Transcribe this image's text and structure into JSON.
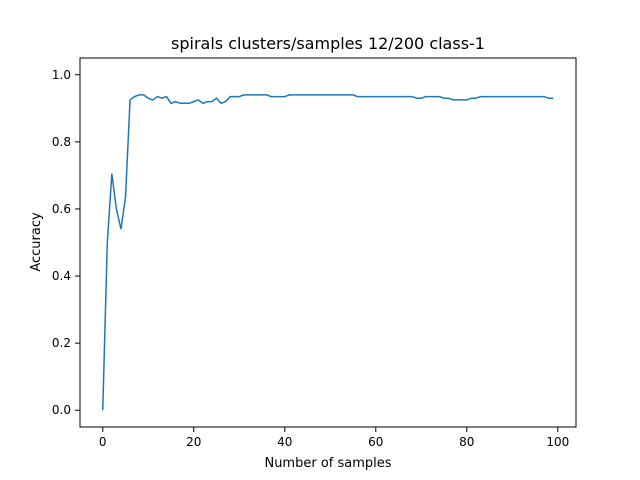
{
  "chart_data": {
    "type": "line",
    "title": "spirals clusters/samples 12/200 class-1",
    "xlabel": "Number of samples",
    "ylabel": "Accuracy",
    "xlim": [
      -5,
      104
    ],
    "ylim": [
      -0.05,
      1.05
    ],
    "xticks": [
      0,
      20,
      40,
      60,
      80,
      100
    ],
    "yticks": [
      0.0,
      0.2,
      0.4,
      0.6,
      0.8,
      1.0
    ],
    "xtick_labels": [
      "0",
      "20",
      "40",
      "60",
      "80",
      "100"
    ],
    "ytick_labels": [
      "0.0",
      "0.2",
      "0.4",
      "0.6",
      "0.8",
      "1.0"
    ],
    "grid": false,
    "color": "#1f77b4",
    "series": [
      {
        "x": [
          0,
          1,
          2,
          3,
          4,
          5,
          6,
          7,
          8,
          9,
          10,
          11,
          12,
          13,
          14,
          15,
          16,
          17,
          18,
          19,
          20,
          21,
          22,
          23,
          24,
          25,
          26,
          27,
          28,
          29,
          30,
          31,
          32,
          33,
          34,
          35,
          36,
          37,
          38,
          39,
          40,
          41,
          42,
          43,
          44,
          45,
          46,
          47,
          48,
          49,
          50,
          51,
          52,
          53,
          54,
          55,
          56,
          57,
          58,
          59,
          60,
          61,
          62,
          63,
          64,
          65,
          66,
          67,
          68,
          69,
          70,
          71,
          72,
          73,
          74,
          75,
          76,
          77,
          78,
          79,
          80,
          81,
          82,
          83,
          84,
          85,
          86,
          87,
          88,
          89,
          90,
          91,
          92,
          93,
          94,
          95,
          96,
          97,
          98,
          99
        ],
        "values": [
          0.0,
          0.5,
          0.705,
          0.6,
          0.54,
          0.635,
          0.925,
          0.935,
          0.94,
          0.94,
          0.93,
          0.925,
          0.935,
          0.93,
          0.935,
          0.915,
          0.92,
          0.915,
          0.915,
          0.915,
          0.92,
          0.925,
          0.915,
          0.92,
          0.92,
          0.93,
          0.915,
          0.92,
          0.935,
          0.935,
          0.935,
          0.94,
          0.94,
          0.94,
          0.94,
          0.94,
          0.94,
          0.935,
          0.935,
          0.935,
          0.935,
          0.94,
          0.94,
          0.94,
          0.94,
          0.94,
          0.94,
          0.94,
          0.94,
          0.94,
          0.94,
          0.94,
          0.94,
          0.94,
          0.94,
          0.94,
          0.935,
          0.935,
          0.935,
          0.935,
          0.935,
          0.935,
          0.935,
          0.935,
          0.935,
          0.935,
          0.935,
          0.935,
          0.935,
          0.93,
          0.93,
          0.935,
          0.935,
          0.935,
          0.935,
          0.93,
          0.93,
          0.925,
          0.925,
          0.925,
          0.925,
          0.93,
          0.93,
          0.935,
          0.935,
          0.935,
          0.935,
          0.935,
          0.935,
          0.935,
          0.935,
          0.935,
          0.935,
          0.935,
          0.935,
          0.935,
          0.935,
          0.935,
          0.93,
          0.93
        ]
      }
    ]
  }
}
